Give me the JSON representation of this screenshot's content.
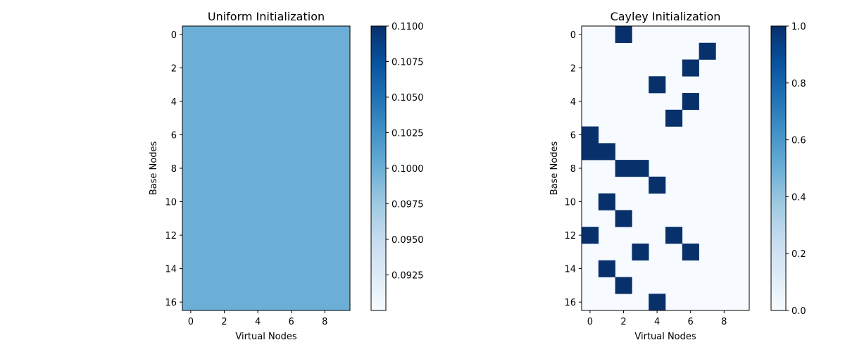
{
  "chart_data": [
    {
      "type": "heatmap",
      "title": "Uniform Initialization",
      "xlabel": "Virtual Nodes",
      "ylabel": "Base Nodes",
      "rows": 17,
      "cols": 10,
      "x_ticks": [
        0,
        2,
        4,
        6,
        8
      ],
      "y_ticks": [
        0,
        2,
        4,
        6,
        8,
        10,
        12,
        14,
        16
      ],
      "fill_value": 0.1,
      "colormap": "Blues",
      "cell_color": "#6baed6",
      "colorbar": {
        "min": 0.09,
        "max": 0.11,
        "ticks": [
          "0.0925",
          "0.0950",
          "0.0975",
          "0.1000",
          "0.1025",
          "0.1050",
          "0.1075",
          "0.1100"
        ]
      }
    },
    {
      "type": "heatmap",
      "title": "Cayley Initialization",
      "xlabel": "Virtual Nodes",
      "ylabel": "Base Nodes",
      "rows": 17,
      "cols": 10,
      "x_ticks": [
        0,
        2,
        4,
        6,
        8
      ],
      "y_ticks": [
        0,
        2,
        4,
        6,
        8,
        10,
        12,
        14,
        16
      ],
      "colormap": "Blues",
      "background_color": "#f7fbff",
      "active_color": "#08306b",
      "active_value": 1,
      "cells": [
        [
          0,
          2
        ],
        [
          1,
          7
        ],
        [
          2,
          6
        ],
        [
          3,
          4
        ],
        [
          4,
          6
        ],
        [
          5,
          5
        ],
        [
          6,
          0
        ],
        [
          7,
          0
        ],
        [
          7,
          1
        ],
        [
          8,
          2
        ],
        [
          8,
          3
        ],
        [
          9,
          4
        ],
        [
          10,
          1
        ],
        [
          11,
          2
        ],
        [
          12,
          0
        ],
        [
          12,
          5
        ],
        [
          13,
          3
        ],
        [
          13,
          6
        ],
        [
          14,
          1
        ],
        [
          15,
          2
        ],
        [
          16,
          4
        ]
      ],
      "colorbar": {
        "min": 0,
        "max": 1,
        "ticks": [
          "0.0",
          "0.2",
          "0.4",
          "0.6",
          "0.8",
          "1.0"
        ]
      }
    }
  ]
}
